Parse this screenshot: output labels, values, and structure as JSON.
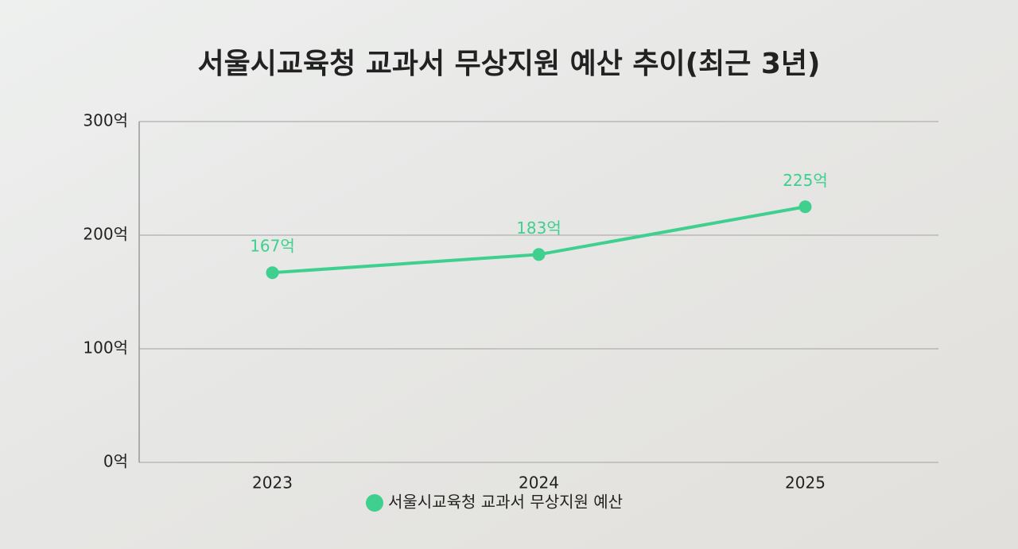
{
  "chart_data": {
    "type": "line",
    "title": "서울시교육청 교과서 무상지원 예산 추이(최근 3년)",
    "categories": [
      "2023",
      "2024",
      "2025"
    ],
    "series": [
      {
        "name": "서울시교육청 교과서 무상지원 예산",
        "color": "#3fcf8e",
        "values": [
          167,
          183,
          225
        ],
        "value_labels": [
          "167억",
          "183억",
          "225억"
        ]
      }
    ],
    "ylim": [
      0,
      300
    ],
    "yticks": [
      {
        "value": 0,
        "label": "0억"
      },
      {
        "value": 100,
        "label": "100억"
      },
      {
        "value": 200,
        "label": "200억"
      },
      {
        "value": 300,
        "label": "300억"
      }
    ],
    "grid": true,
    "legend": "bottom"
  }
}
